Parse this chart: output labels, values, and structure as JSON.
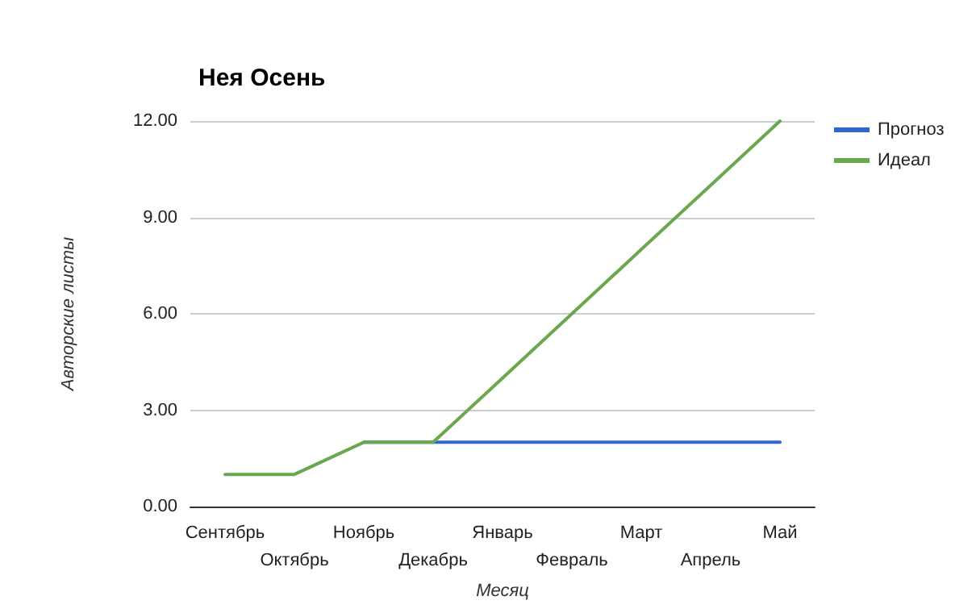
{
  "chart_data": {
    "type": "line",
    "title": "Нея Осень",
    "xlabel": "Месяц",
    "ylabel": "Авторские листы",
    "categories": [
      "Сентябрь",
      "Октябрь",
      "Ноябрь",
      "Декабрь",
      "Январь",
      "Февраль",
      "Март",
      "Апрель",
      "Май"
    ],
    "series": [
      {
        "name": "Прогноз",
        "color": "#3366cc",
        "values": [
          null,
          null,
          2,
          2,
          2,
          2,
          2,
          2,
          2
        ]
      },
      {
        "name": "Идеал",
        "color": "#6aa84f",
        "values": [
          1,
          1,
          2,
          2,
          4,
          6,
          8,
          10,
          12
        ]
      }
    ],
    "ylim": [
      0,
      12
    ],
    "yticks": [
      {
        "value": 0,
        "label": "0.00"
      },
      {
        "value": 3,
        "label": "3.00"
      },
      {
        "value": 6,
        "label": "6.00"
      },
      {
        "value": 9,
        "label": "9.00"
      },
      {
        "value": 12,
        "label": "12.00"
      }
    ],
    "grid": "y",
    "legend": "top right",
    "marker": "none",
    "line_style": "solid"
  }
}
